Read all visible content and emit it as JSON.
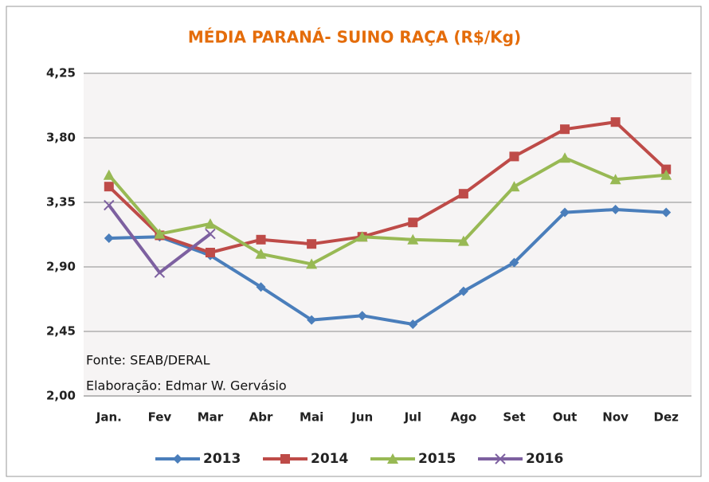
{
  "chart_data": {
    "type": "line",
    "title": "MÉDIA PARANÁ- SUINO RAÇA (R$/Kg)",
    "categories": [
      "Jan.",
      "Fev",
      "Mar",
      "Abr",
      "Mai",
      "Jun",
      "Jul",
      "Ago",
      "Set",
      "Out",
      "Nov",
      "Dez"
    ],
    "series": [
      {
        "name": "2013",
        "color": "#4a7ebb",
        "marker": "diamond",
        "values": [
          3.1,
          3.11,
          2.98,
          2.76,
          2.53,
          2.56,
          2.5,
          2.73,
          2.93,
          3.28,
          3.3,
          3.28
        ]
      },
      {
        "name": "2014",
        "color": "#be4b48",
        "marker": "square",
        "values": [
          3.46,
          3.12,
          3.0,
          3.09,
          3.06,
          3.11,
          3.21,
          3.41,
          3.67,
          3.86,
          3.91,
          3.58
        ]
      },
      {
        "name": "2015",
        "color": "#98b954",
        "marker": "triangle",
        "values": [
          3.54,
          3.13,
          3.2,
          2.99,
          2.92,
          3.11,
          3.09,
          3.08,
          3.46,
          3.66,
          3.51,
          3.54
        ]
      },
      {
        "name": "2016",
        "color": "#7d60a0",
        "marker": "x",
        "values": [
          3.33,
          2.86,
          3.13,
          null,
          null,
          null,
          null,
          null,
          null,
          null,
          null,
          null
        ]
      }
    ],
    "ylim": [
      2.0,
      4.25
    ],
    "yticks": [
      {
        "value": 2.0,
        "label": "2,00"
      },
      {
        "value": 2.45,
        "label": "2,45"
      },
      {
        "value": 2.9,
        "label": "2,90"
      },
      {
        "value": 3.35,
        "label": "3,35"
      },
      {
        "value": 3.8,
        "label": "3,80"
      },
      {
        "value": 4.25,
        "label": "4,25"
      }
    ],
    "grid": true,
    "annotations": [
      "Fonte: SEAB/DERAL",
      "Elaboração:  Edmar W. Gervásio"
    ]
  }
}
